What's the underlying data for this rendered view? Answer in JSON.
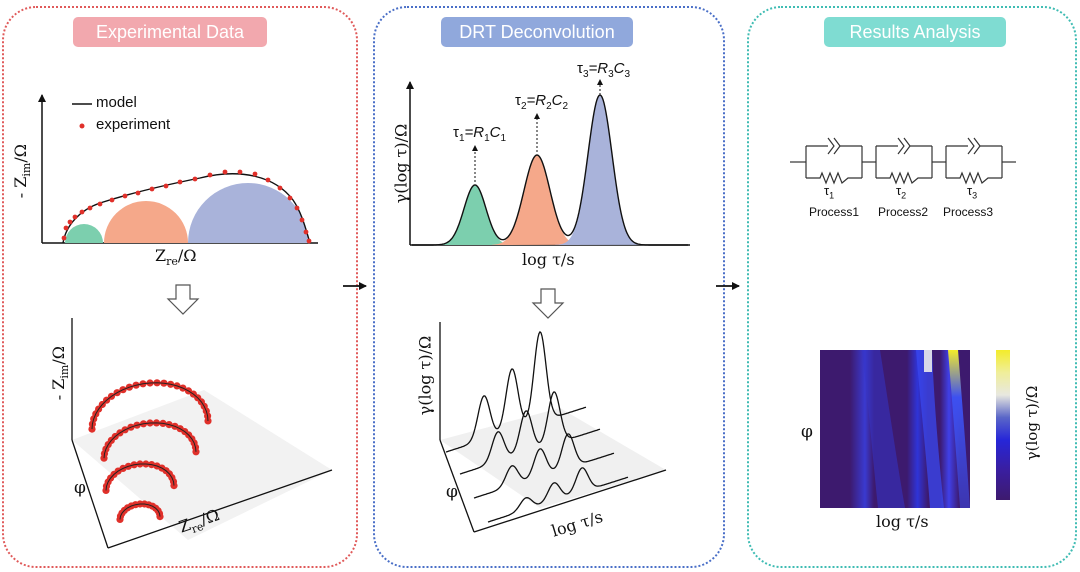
{
  "panels": {
    "experimental": {
      "title": "Experimental Data",
      "legend_model": "model",
      "legend_experiment": "experiment",
      "y_label": "- Z",
      "y_sub": "im",
      "y_unit": "/Ω",
      "x_label": "Z",
      "x_sub": "re",
      "x_unit": "/Ω",
      "phi_label": "φ"
    },
    "drt": {
      "title": "DRT Deconvolution",
      "y_label": "γ(log τ)/Ω",
      "x_label": "log τ/s",
      "tau1_a": "τ",
      "tau1_s": "1",
      "tau1_b": "=R",
      "tau1_c": "1",
      "tau1_d": "C",
      "tau1_e": "1",
      "tau2_a": "τ",
      "tau2_s": "2",
      "tau2_b": "=R",
      "tau2_c": "2",
      "tau2_d": "C",
      "tau2_e": "2",
      "tau3_a": "τ",
      "tau3_s": "3",
      "tau3_b": "=R",
      "tau3_c": "3",
      "tau3_d": "C",
      "tau3_e": "3",
      "phi_label": "φ"
    },
    "results": {
      "title": "Results Analysis",
      "tau_glyph": "τ",
      "tau_subs": [
        "1",
        "2",
        "3"
      ],
      "processes": [
        "Process1",
        "Process2",
        "Process3"
      ],
      "phi_label": "φ",
      "x_label": "log τ/s",
      "colorbar_label": "γ(log τ)/Ω"
    }
  },
  "colors": {
    "red": "#e05a5a",
    "blue": "#4a6fc7",
    "teal": "#3fbcb3",
    "green_fill": "#7ccfae",
    "orange_fill": "#f5a88a",
    "purple_fill": "#a9b3da",
    "point": "#e0302a"
  }
}
